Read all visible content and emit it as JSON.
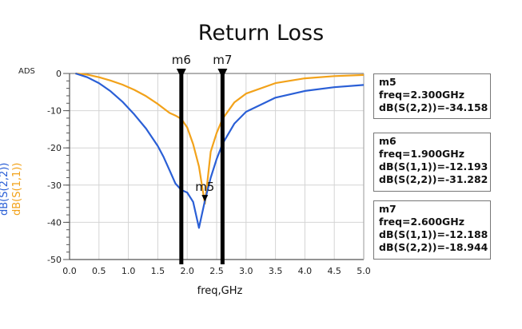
{
  "chart_data": {
    "type": "line",
    "title": "Return Loss",
    "corner_label": "ADS",
    "xlabel": "freq,GHz",
    "ylabel": [
      "dB(S(2,2))",
      "dB(S(1,1))"
    ],
    "xlim": [
      0.0,
      5.0
    ],
    "ylim": [
      -50,
      0
    ],
    "xticks": [
      "0.0",
      "0.5",
      "1.0",
      "1.5",
      "2.0",
      "2.5",
      "3.0",
      "3.5",
      "4.0",
      "4.5",
      "5.0"
    ],
    "yticks": [
      "0",
      "-10",
      "-20",
      "-30",
      "-40",
      "-50"
    ],
    "grid": true,
    "series": [
      {
        "name": "dB(S(2,2))",
        "color": "#2a5fd6",
        "x": [
          0.1,
          0.3,
          0.5,
          0.7,
          0.9,
          1.1,
          1.3,
          1.5,
          1.6,
          1.7,
          1.8,
          1.9,
          2.0,
          2.1,
          2.2,
          2.3,
          2.4,
          2.5,
          2.6,
          2.8,
          3.0,
          3.5,
          4.0,
          4.5,
          5.0
        ],
        "y": [
          0,
          -1,
          -2.6,
          -4.8,
          -7.6,
          -11,
          -14.8,
          -19.5,
          -22.5,
          -26,
          -29.6,
          -31.3,
          -32,
          -34.5,
          -41.5,
          -34.2,
          -28,
          -23,
          -18.9,
          -13.5,
          -10.3,
          -6.5,
          -4.7,
          -3.7,
          -3.1
        ]
      },
      {
        "name": "dB(S(1,1))",
        "color": "#f2a21a",
        "x": [
          0.1,
          0.3,
          0.5,
          0.7,
          0.9,
          1.1,
          1.3,
          1.5,
          1.7,
          1.8,
          1.9,
          2.0,
          2.1,
          2.2,
          2.25,
          2.3,
          2.35,
          2.4,
          2.5,
          2.6,
          2.8,
          3.0,
          3.5,
          4.0,
          4.5,
          5.0
        ],
        "y": [
          0,
          -0.3,
          -1,
          -1.9,
          -3,
          -4.4,
          -6.1,
          -8.2,
          -10.6,
          -11.3,
          -12.2,
          -14.5,
          -19,
          -25,
          -30,
          -35,
          -28,
          -21,
          -16,
          -12.2,
          -7.8,
          -5.4,
          -2.6,
          -1.3,
          -0.7,
          -0.4
        ]
      }
    ],
    "markers": [
      {
        "id": "m5",
        "freq": "2.300GHz",
        "lines": [
          "m5",
          "freq=2.300GHz",
          "dB(S(2,2))=-34.158"
        ]
      },
      {
        "id": "m6",
        "freq": "1.900GHz",
        "lines": [
          "m6",
          "freq=1.900GHz",
          "dB(S(1,1))=-12.193",
          "dB(S(2,2))=-31.282"
        ]
      },
      {
        "id": "m7",
        "freq": "2.600GHz",
        "lines": [
          "m7",
          "freq=2.600GHz",
          "dB(S(1,1))=-12.188",
          "dB(S(2,2))=-18.944"
        ]
      }
    ]
  }
}
